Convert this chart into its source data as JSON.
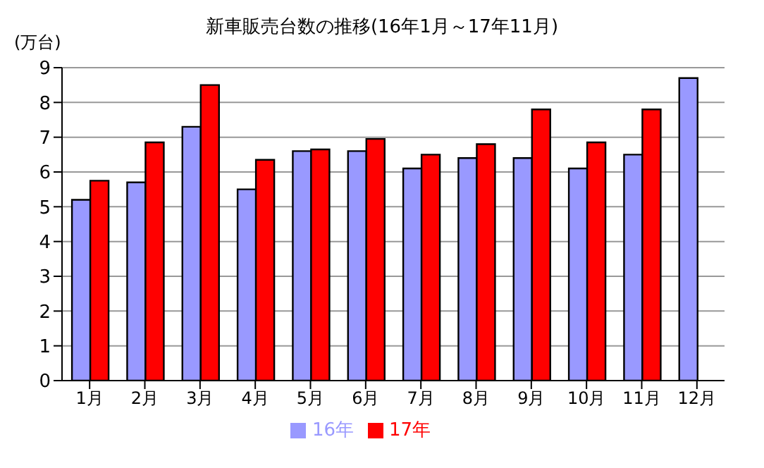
{
  "chart_data": {
    "type": "bar",
    "title": "新車販売台数の推移(16年1月～17年11月)",
    "ylabel": "(万台)",
    "categories": [
      "1月",
      "2月",
      "3月",
      "4月",
      "5月",
      "6月",
      "7月",
      "8月",
      "9月",
      "10月",
      "11月",
      "12月"
    ],
    "series": [
      {
        "name": "16年",
        "color": "#9999ff",
        "values": [
          5.2,
          5.7,
          7.3,
          5.5,
          6.6,
          6.6,
          6.1,
          6.4,
          6.4,
          6.1,
          6.5,
          8.7
        ]
      },
      {
        "name": "17年",
        "color": "#ff0000",
        "values": [
          5.75,
          6.85,
          8.5,
          6.35,
          6.65,
          6.95,
          6.5,
          6.8,
          7.8,
          6.85,
          7.8,
          null
        ]
      }
    ],
    "ylim": [
      0,
      9
    ],
    "yticks": [
      0,
      1,
      2,
      3,
      4,
      5,
      6,
      7,
      8,
      9
    ],
    "grid": "y",
    "legend": "bottom"
  }
}
